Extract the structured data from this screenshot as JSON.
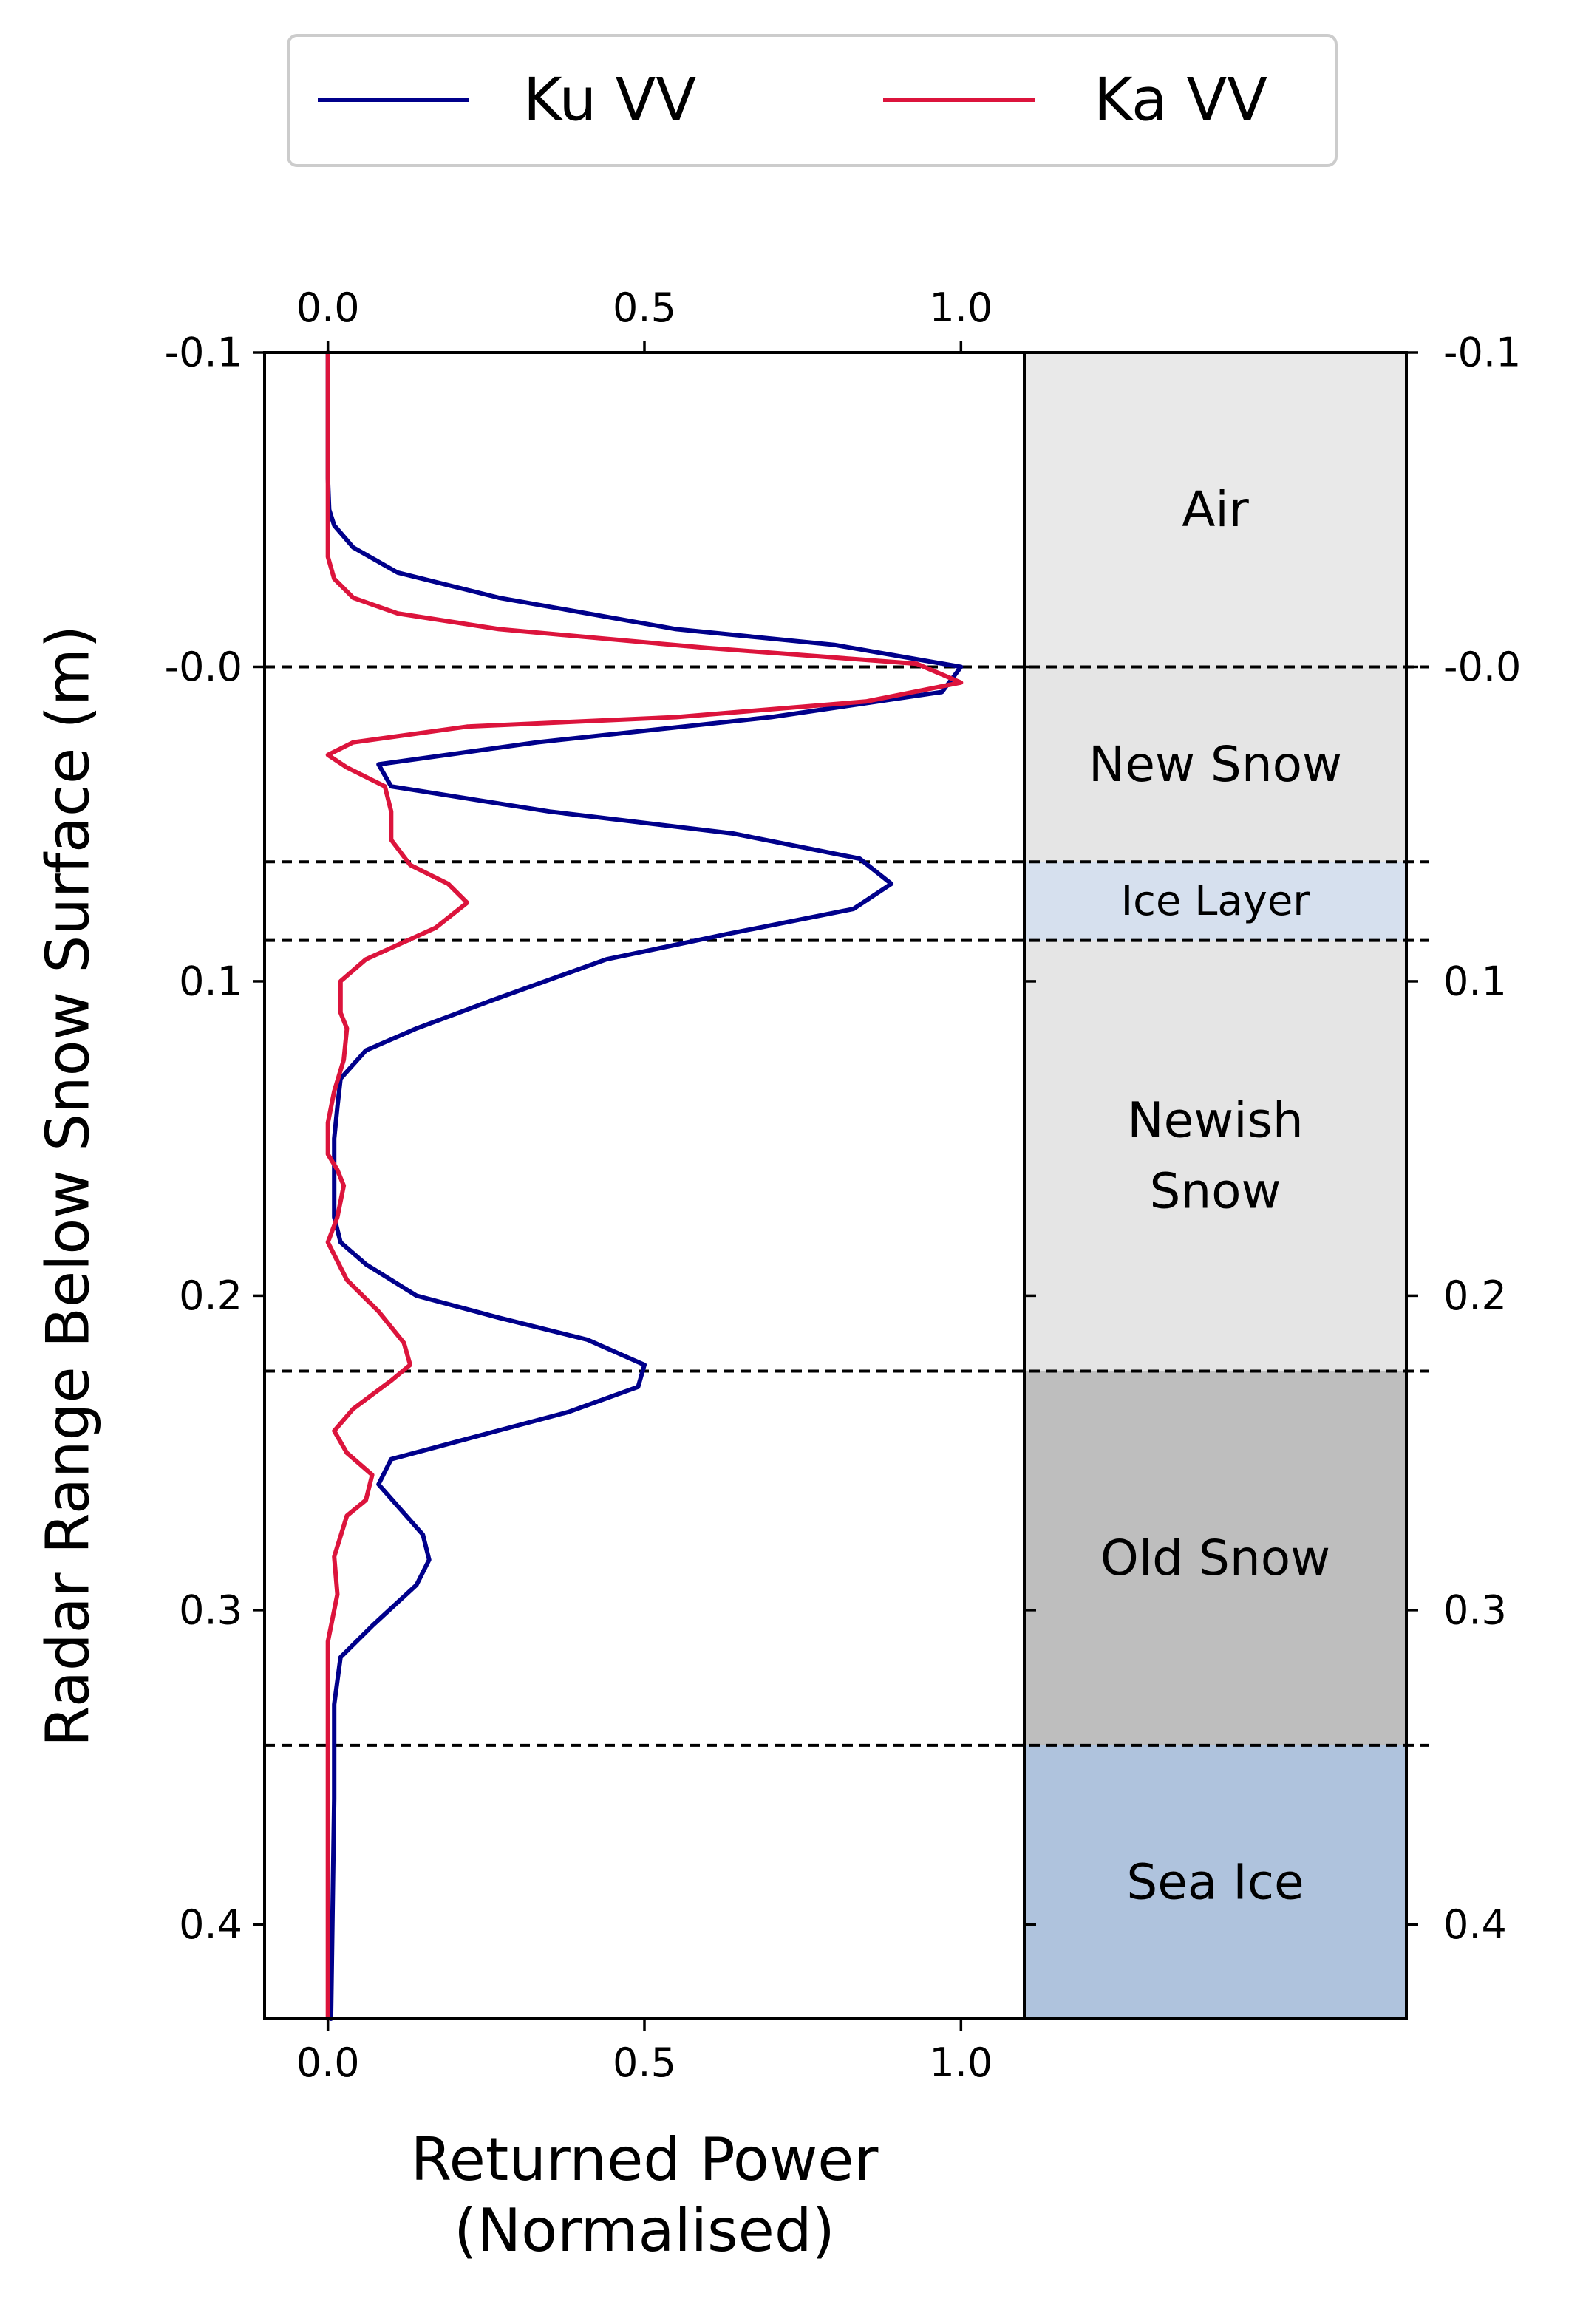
{
  "chart_data": {
    "type": "line",
    "xlabel_lines": [
      "Returned Power",
      "(Normalised)"
    ],
    "ylabel": "Radar Range Below Snow Surface (m)",
    "xlim": [
      -0.1,
      1.1
    ],
    "ylim": [
      -0.1,
      0.43
    ],
    "y_inverted": true,
    "x_ticks": [
      {
        "value": 0.0,
        "label": "0.0"
      },
      {
        "value": 0.5,
        "label": "0.5"
      },
      {
        "value": 1.0,
        "label": "1.0"
      }
    ],
    "y_ticks": [
      {
        "value": -0.1,
        "label": "-0.1"
      },
      {
        "value": 0.0,
        "label": "-0.0"
      },
      {
        "value": 0.1,
        "label": "0.1"
      },
      {
        "value": 0.2,
        "label": "0.2"
      },
      {
        "value": 0.3,
        "label": "0.3"
      },
      {
        "value": 0.4,
        "label": "0.4"
      }
    ],
    "legend_position": "top-center",
    "series": [
      {
        "name": "Ku VV",
        "color": "#00008b",
        "points": [
          [
            0.0,
            -0.1
          ],
          [
            0.0,
            -0.06
          ],
          [
            0.002,
            -0.05
          ],
          [
            0.01,
            -0.045
          ],
          [
            0.04,
            -0.038
          ],
          [
            0.11,
            -0.03
          ],
          [
            0.27,
            -0.022
          ],
          [
            0.55,
            -0.012
          ],
          [
            0.8,
            -0.007
          ],
          [
            1.0,
            0.0
          ],
          [
            0.97,
            0.008
          ],
          [
            0.7,
            0.016
          ],
          [
            0.33,
            0.024
          ],
          [
            0.08,
            0.031
          ],
          [
            0.1,
            0.038
          ],
          [
            0.35,
            0.046
          ],
          [
            0.64,
            0.053
          ],
          [
            0.84,
            0.061
          ],
          [
            0.89,
            0.069
          ],
          [
            0.83,
            0.077
          ],
          [
            0.63,
            0.085
          ],
          [
            0.44,
            0.093
          ],
          [
            0.26,
            0.106
          ],
          [
            0.14,
            0.115
          ],
          [
            0.06,
            0.122
          ],
          [
            0.02,
            0.131
          ],
          [
            0.015,
            0.14
          ],
          [
            0.01,
            0.15
          ],
          [
            0.01,
            0.165
          ],
          [
            0.01,
            0.175
          ],
          [
            0.02,
            0.183
          ],
          [
            0.06,
            0.19
          ],
          [
            0.14,
            0.2
          ],
          [
            0.27,
            0.207
          ],
          [
            0.41,
            0.214
          ],
          [
            0.5,
            0.222
          ],
          [
            0.49,
            0.229
          ],
          [
            0.38,
            0.237
          ],
          [
            0.23,
            0.245
          ],
          [
            0.1,
            0.252
          ],
          [
            0.08,
            0.26
          ],
          [
            0.15,
            0.276
          ],
          [
            0.16,
            0.284
          ],
          [
            0.14,
            0.292
          ],
          [
            0.07,
            0.305
          ],
          [
            0.02,
            0.315
          ],
          [
            0.01,
            0.33
          ],
          [
            0.01,
            0.36
          ],
          [
            0.005,
            0.43
          ]
        ]
      },
      {
        "name": "Ka VV",
        "color": "#dc143c",
        "points": [
          [
            0.0,
            -0.1
          ],
          [
            0.0,
            -0.06
          ],
          [
            0.0,
            -0.035
          ],
          [
            0.01,
            -0.028
          ],
          [
            0.04,
            -0.022
          ],
          [
            0.11,
            -0.017
          ],
          [
            0.27,
            -0.012
          ],
          [
            0.6,
            -0.006
          ],
          [
            0.93,
            -0.001
          ],
          [
            1.0,
            0.005
          ],
          [
            0.85,
            0.011
          ],
          [
            0.55,
            0.016
          ],
          [
            0.22,
            0.019
          ],
          [
            0.04,
            0.024
          ],
          [
            0.0,
            0.028
          ],
          [
            0.03,
            0.032
          ],
          [
            0.09,
            0.038
          ],
          [
            0.1,
            0.046
          ],
          [
            0.1,
            0.055
          ],
          [
            0.13,
            0.063
          ],
          [
            0.19,
            0.069
          ],
          [
            0.22,
            0.075
          ],
          [
            0.17,
            0.083
          ],
          [
            0.06,
            0.093
          ],
          [
            0.02,
            0.1
          ],
          [
            0.02,
            0.11
          ],
          [
            0.03,
            0.115
          ],
          [
            0.025,
            0.125
          ],
          [
            0.01,
            0.135
          ],
          [
            0.0,
            0.145
          ],
          [
            0.0,
            0.155
          ],
          [
            0.015,
            0.16
          ],
          [
            0.025,
            0.165
          ],
          [
            0.015,
            0.175
          ],
          [
            0.0,
            0.183
          ],
          [
            0.03,
            0.195
          ],
          [
            0.08,
            0.205
          ],
          [
            0.12,
            0.215
          ],
          [
            0.13,
            0.222
          ],
          [
            0.1,
            0.227
          ],
          [
            0.04,
            0.236
          ],
          [
            0.01,
            0.243
          ],
          [
            0.03,
            0.25
          ],
          [
            0.07,
            0.257
          ],
          [
            0.06,
            0.265
          ],
          [
            0.03,
            0.27
          ],
          [
            0.01,
            0.283
          ],
          [
            0.015,
            0.295
          ],
          [
            0.0,
            0.31
          ],
          [
            0.0,
            0.43
          ]
        ]
      }
    ],
    "layers": [
      {
        "name": "air",
        "label_lines": [
          "Air"
        ],
        "top": -0.1,
        "bottom": 0.0,
        "color": "#e9e9e9"
      },
      {
        "name": "new-snow",
        "label_lines": [
          "New Snow"
        ],
        "top": 0.0,
        "bottom": 0.062,
        "color": "#e5e5e5"
      },
      {
        "name": "ice-layer",
        "label_lines": [
          "Ice Layer"
        ],
        "top": 0.062,
        "bottom": 0.087,
        "color": "#d6e0ee",
        "small": true
      },
      {
        "name": "newish-snow",
        "label_lines": [
          "Newish",
          "Snow"
        ],
        "top": 0.087,
        "bottom": 0.224,
        "color": "#e5e5e5"
      },
      {
        "name": "old-snow",
        "label_lines": [
          "Old Snow"
        ],
        "top": 0.224,
        "bottom": 0.343,
        "color": "#bebebe"
      },
      {
        "name": "sea-ice",
        "label_lines": [
          "Sea Ice"
        ],
        "top": 0.343,
        "bottom": 0.43,
        "color": "#afc3dd"
      }
    ]
  }
}
